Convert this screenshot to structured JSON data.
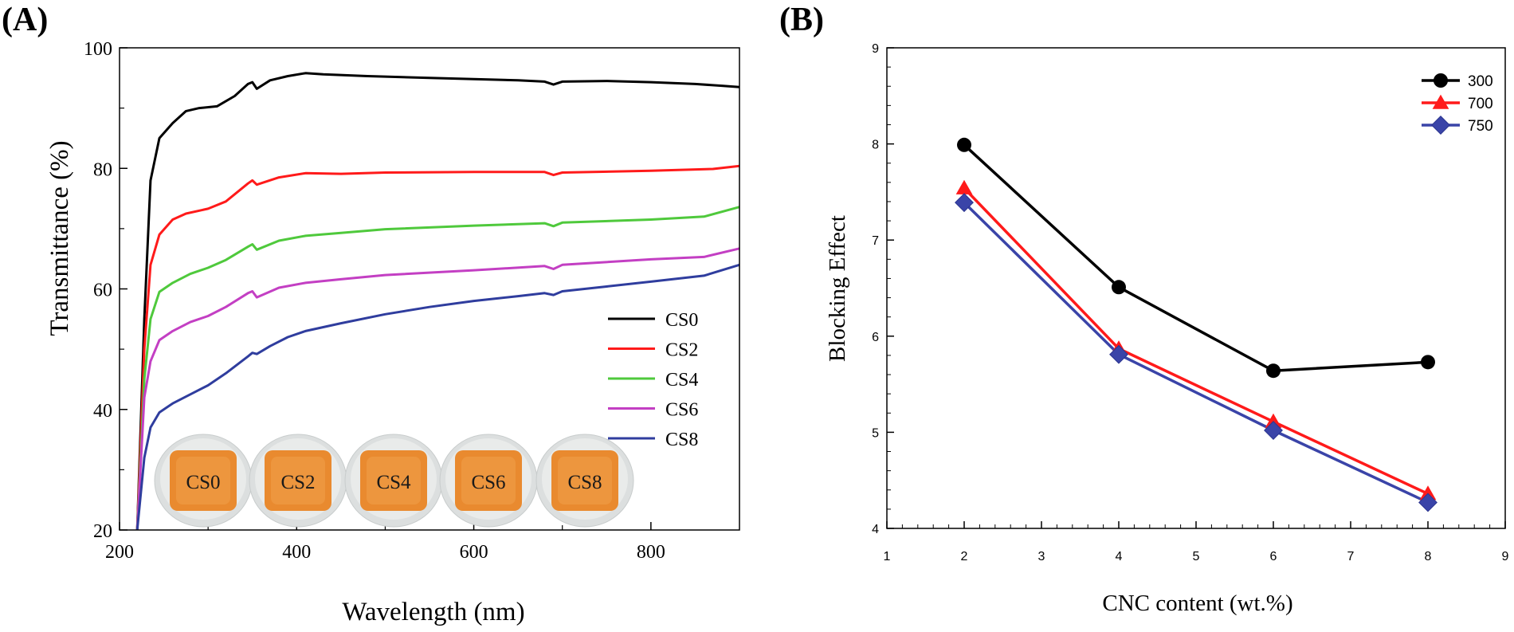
{
  "chart_data": [
    {
      "panel_label": "(A)",
      "type": "line",
      "xlabel": "Wavelength (nm)",
      "ylabel": "Transmittance (%)",
      "xlim": [
        200,
        900
      ],
      "ylim": [
        20,
        100
      ],
      "xticks": [
        200,
        400,
        600,
        800
      ],
      "yticks": [
        20,
        40,
        60,
        80,
        100
      ],
      "legend_position": "right",
      "series": [
        {
          "name": "CS0",
          "color": "#000000",
          "x": [
            220,
            228,
            235,
            245,
            260,
            275,
            290,
            310,
            330,
            345,
            350,
            355,
            370,
            390,
            410,
            430,
            480,
            550,
            650,
            680,
            690,
            700,
            750,
            800,
            850,
            880,
            900
          ],
          "y": [
            20,
            55,
            78,
            85,
            87.5,
            89.5,
            90,
            90.3,
            92,
            94,
            94.3,
            93.2,
            94.6,
            95.3,
            95.8,
            95.6,
            95.3,
            95.0,
            94.6,
            94.4,
            93.9,
            94.4,
            94.5,
            94.3,
            94.0,
            93.7,
            93.5
          ]
        },
        {
          "name": "CS2",
          "color": "#ff1a1a",
          "x": [
            220,
            228,
            235,
            245,
            260,
            275,
            300,
            320,
            345,
            350,
            355,
            380,
            410,
            450,
            500,
            600,
            680,
            690,
            700,
            800,
            870,
            900
          ],
          "y": [
            20,
            50,
            64,
            69,
            71.5,
            72.5,
            73.3,
            74.5,
            77.5,
            78.0,
            77.3,
            78.5,
            79.2,
            79.1,
            79.3,
            79.4,
            79.4,
            78.9,
            79.3,
            79.6,
            79.9,
            80.4
          ]
        },
        {
          "name": "CS4",
          "color": "#4fc93c",
          "x": [
            220,
            228,
            235,
            245,
            260,
            280,
            300,
            320,
            345,
            350,
            355,
            380,
            410,
            450,
            500,
            600,
            680,
            690,
            700,
            800,
            860,
            900
          ],
          "y": [
            20,
            45,
            55,
            59.5,
            61,
            62.5,
            63.5,
            64.8,
            67.0,
            67.4,
            66.5,
            68,
            68.8,
            69.3,
            69.9,
            70.5,
            70.9,
            70.4,
            71.0,
            71.5,
            72.0,
            73.6
          ]
        },
        {
          "name": "CS6",
          "color": "#c33fc3",
          "x": [
            220,
            228,
            235,
            245,
            260,
            280,
            300,
            320,
            345,
            350,
            355,
            380,
            410,
            450,
            500,
            600,
            680,
            690,
            700,
            800,
            860,
            900
          ],
          "y": [
            20,
            42,
            48,
            51.5,
            53,
            54.5,
            55.5,
            57,
            59.3,
            59.6,
            58.6,
            60.2,
            61.0,
            61.6,
            62.3,
            63.1,
            63.8,
            63.3,
            64.0,
            64.9,
            65.3,
            66.7
          ]
        },
        {
          "name": "CS8",
          "color": "#2f3d9e",
          "x": [
            220,
            228,
            235,
            245,
            260,
            280,
            300,
            320,
            345,
            350,
            355,
            370,
            390,
            410,
            450,
            500,
            550,
            600,
            650,
            680,
            690,
            700,
            750,
            800,
            860,
            900
          ],
          "y": [
            20,
            32,
            37,
            39.5,
            41,
            42.5,
            44,
            46,
            48.8,
            49.4,
            49.2,
            50.5,
            52,
            53,
            54.3,
            55.8,
            57,
            58,
            58.8,
            59.3,
            59.0,
            59.6,
            60.4,
            61.2,
            62.2,
            64.0
          ]
        }
      ],
      "photo_labels": [
        "CS0",
        "CS2",
        "CS4",
        "CS6",
        "CS8"
      ]
    },
    {
      "panel_label": "(B)",
      "type": "line",
      "xlabel": "CNC content (wt.%)",
      "ylabel": "Blocking Effect",
      "xlim": [
        1,
        9
      ],
      "ylim": [
        4,
        9
      ],
      "xticks": [
        1,
        2,
        3,
        4,
        5,
        6,
        7,
        8,
        9
      ],
      "yticks": [
        4,
        5,
        6,
        7,
        8,
        9
      ],
      "legend_position": "top-right",
      "categories": [
        2,
        4,
        6,
        8
      ],
      "series": [
        {
          "name": "300",
          "color": "#000000",
          "marker": "circle",
          "values": [
            7.99,
            6.51,
            5.64,
            5.73
          ]
        },
        {
          "name": "700",
          "color": "#ff1a1a",
          "marker": "triangle",
          "values": [
            7.54,
            5.87,
            5.11,
            4.36
          ]
        },
        {
          "name": "750",
          "color": "#3a44a8",
          "marker": "diamond",
          "values": [
            7.39,
            5.81,
            5.02,
            4.27
          ]
        }
      ]
    }
  ]
}
